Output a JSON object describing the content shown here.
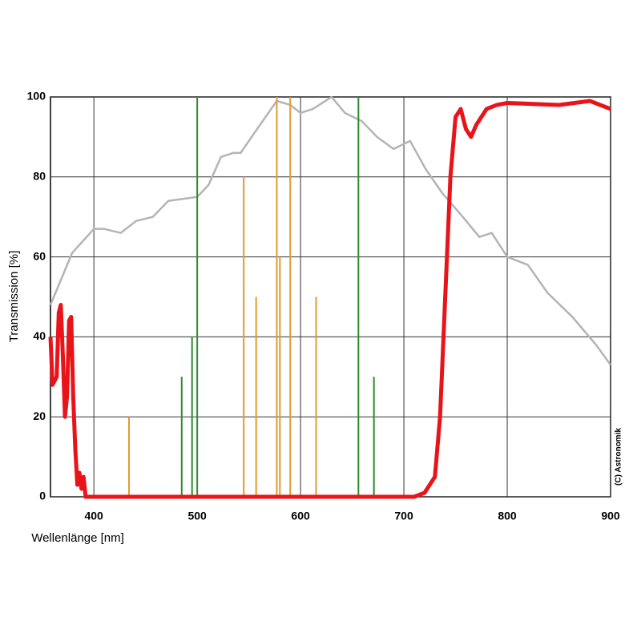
{
  "chart_data": {
    "type": "spectrum",
    "x_label": "Wellenlänge [nm]",
    "y_label": "Transmission [%]",
    "copyright": "(C) Astronomik",
    "xlim": [
      358,
      900
    ],
    "xticks": [
      400,
      500,
      600,
      700,
      800,
      900
    ],
    "ylim": [
      0,
      100
    ],
    "yticks": [
      0,
      20,
      40,
      60,
      80,
      100
    ],
    "grid": true,
    "series": [
      {
        "kind": "line",
        "color": "#b4b4b4",
        "x": [
          358,
          379,
          400,
          410,
          426,
          441,
          457,
          472,
          500,
          511,
          523,
          535,
          542,
          558,
          577,
          590,
          600,
          612,
          630,
          643,
          659,
          674,
          690,
          706,
          721,
          737,
          757,
          773,
          785,
          800,
          820,
          839,
          863,
          886,
          900
        ],
        "values": [
          48,
          61,
          67,
          67,
          66,
          69,
          70,
          74,
          75,
          78,
          85,
          86,
          86,
          92,
          99,
          98,
          96,
          97,
          100,
          96,
          94,
          90,
          87,
          89,
          82,
          76,
          70,
          65,
          66,
          60,
          58,
          51,
          45,
          38,
          33
        ]
      },
      {
        "kind": "emission",
        "color": "#2e8b2e",
        "x": [
          485,
          495,
          500,
          656,
          671
        ],
        "values": [
          30,
          40,
          100,
          100,
          30
        ]
      },
      {
        "kind": "emission",
        "color": "#e39b2e",
        "x": [
          434,
          545,
          557,
          577,
          580,
          590,
          615
        ],
        "values": [
          20,
          80,
          50,
          100,
          60,
          100,
          50
        ]
      },
      {
        "kind": "line",
        "color": "#e8141a",
        "width": 5,
        "x": [
          358,
          360,
          364,
          366,
          368,
          370,
          372,
          374,
          376,
          378,
          380,
          382,
          384,
          386,
          388,
          390,
          392,
          400,
          500,
          600,
          710,
          720,
          730,
          735,
          740,
          745,
          750,
          755,
          760,
          765,
          770,
          780,
          790,
          800,
          850,
          880,
          900
        ],
        "values": [
          40,
          28,
          30,
          46,
          48,
          35,
          20,
          25,
          44,
          45,
          25,
          12,
          3,
          6,
          2,
          5,
          0,
          0,
          0,
          0,
          0,
          1,
          5,
          20,
          50,
          80,
          95,
          97,
          92,
          90,
          93,
          97,
          98,
          98.5,
          98,
          99,
          97
        ]
      }
    ]
  }
}
